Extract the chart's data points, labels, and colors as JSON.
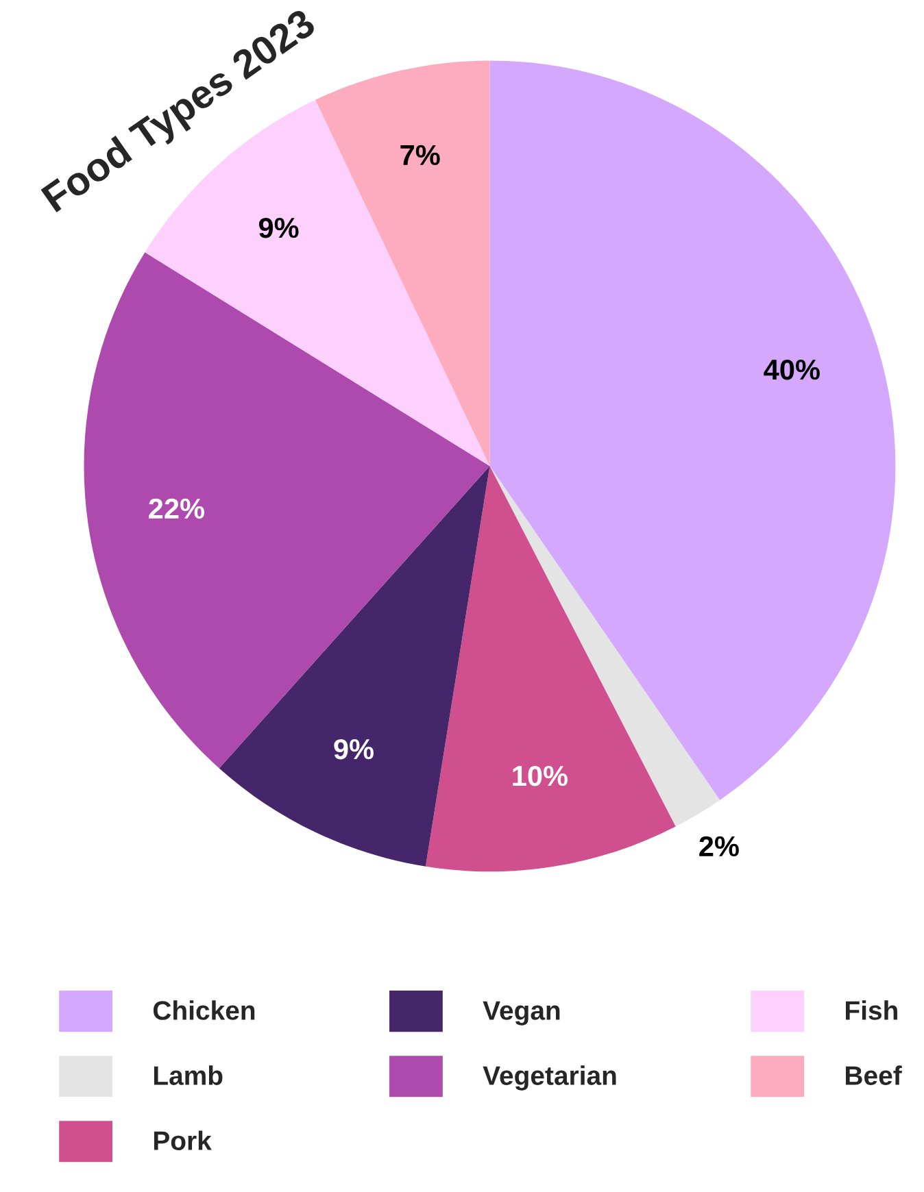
{
  "chart_data": {
    "type": "pie",
    "title": "Food Types 2023",
    "categories": [
      "Chicken",
      "Lamb",
      "Pork",
      "Vegan",
      "Vegetarian",
      "Fish",
      "Beef"
    ],
    "values": [
      40,
      2,
      10,
      9,
      22,
      9,
      7
    ],
    "colors": [
      "#d4a9fd",
      "#e4e4e4",
      "#cf4f8f",
      "#45266a",
      "#ae4aad",
      "#fdd0fd",
      "#fdabbf"
    ],
    "value_labels": [
      "40%",
      "2%",
      "10%",
      "9%",
      "22%",
      "9%",
      "7%"
    ],
    "legend": "bottom"
  }
}
